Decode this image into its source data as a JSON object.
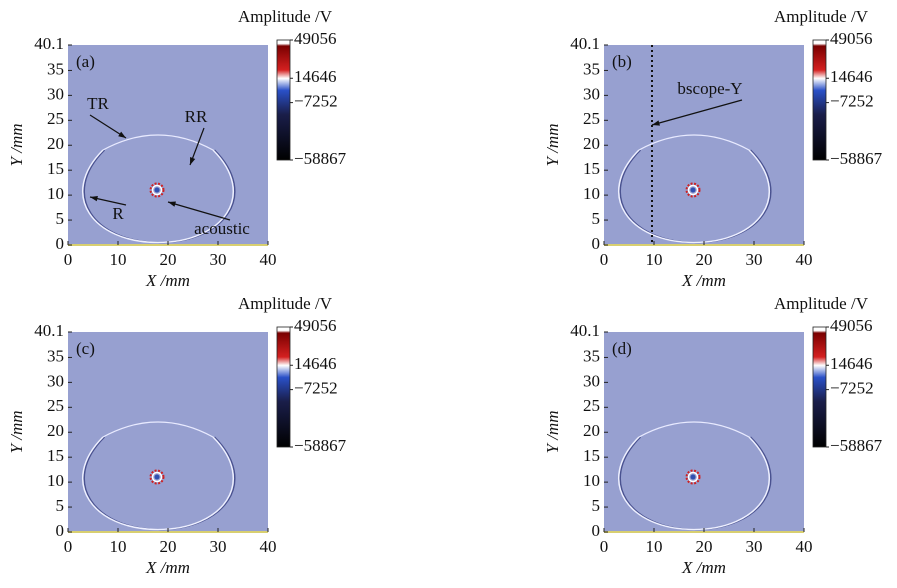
{
  "chart_data": [
    {
      "type": "heatmap",
      "title": "Amplitude /V",
      "panel_label": "(a)",
      "xlabel": "X /mm",
      "ylabel": "Y /mm",
      "xlim": [
        0,
        40
      ],
      "ylim": [
        0,
        40.1
      ],
      "xticks": [
        0,
        10,
        20,
        30,
        40
      ],
      "yticks": [
        0,
        5,
        10,
        15,
        20,
        25,
        30,
        35,
        40.1
      ],
      "colorbar": {
        "lim": [
          -58867,
          49056
        ],
        "ticks": [
          49056,
          14646,
          {
            "value": -7252,
            "label": "−7252"
          },
          {
            "value": -58867,
            "label": "−58867"
          }
        ]
      },
      "annotations": [
        "TR",
        "RR",
        "R",
        "acoustic"
      ]
    },
    {
      "type": "heatmap",
      "title": "Amplitude /V",
      "panel_label": "(b)",
      "xlabel": "X /mm",
      "ylabel": "Y /mm",
      "xlim": [
        0,
        40
      ],
      "ylim": [
        0,
        40.1
      ],
      "xticks": [
        0,
        10,
        20,
        30,
        40
      ],
      "yticks": [
        0,
        5,
        10,
        15,
        20,
        25,
        30,
        35,
        40.1
      ],
      "colorbar": {
        "lim": [
          -58867,
          49056
        ],
        "ticks": [
          49056,
          14646,
          {
            "value": -7252,
            "label": "−7252"
          },
          {
            "value": -58867,
            "label": "−58867"
          }
        ]
      },
      "annotations": [
        "bscope-Y"
      ]
    },
    {
      "type": "heatmap",
      "title": "Amplitude /V",
      "panel_label": "(c)",
      "xlabel": "X /mm",
      "ylabel": "Y /mm",
      "xlim": [
        0,
        40
      ],
      "ylim": [
        0,
        40.1
      ],
      "xticks": [
        0,
        10,
        20,
        30,
        40
      ],
      "yticks": [
        0,
        5,
        10,
        15,
        20,
        25,
        30,
        35,
        40.1
      ],
      "colorbar": {
        "lim": [
          -58867,
          49056
        ],
        "ticks": [
          49056,
          14646,
          {
            "value": -7252,
            "label": "−7252"
          },
          {
            "value": -58867,
            "label": "−58867"
          }
        ]
      }
    },
    {
      "type": "heatmap",
      "title": "Amplitude /V",
      "panel_label": "(d)",
      "xlabel": "X /mm",
      "ylabel": "Y /mm",
      "xlim": [
        0,
        40
      ],
      "ylim": [
        0,
        40.1
      ],
      "xticks": [
        0,
        10,
        20,
        30,
        40
      ],
      "yticks": [
        0,
        5,
        10,
        15,
        20,
        25,
        30,
        35,
        40.1
      ],
      "colorbar": {
        "lim": [
          -58867,
          49056
        ],
        "ticks": [
          49056,
          14646,
          {
            "value": -7252,
            "label": "−7252"
          },
          {
            "value": -58867,
            "label": "−58867"
          }
        ]
      }
    }
  ]
}
